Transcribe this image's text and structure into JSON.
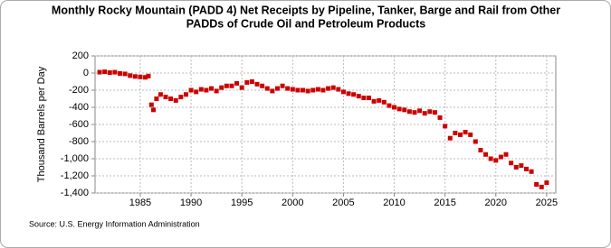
{
  "chart_data": {
    "type": "scatter",
    "title_lines": [
      "Monthly Rocky Mountain (PADD 4) Net Receipts by Pipeline, Tanker, Barge and Rail from Other",
      "PADDs of Crude Oil and Petroleum Products"
    ],
    "y_label": "Thousand Barrels per Day",
    "source": "Source: U.S. Energy Information Administration",
    "series": [
      {
        "color": "#cc0000",
        "x": [
          1981.0,
          1981.5,
          1982.0,
          1982.5,
          1983.0,
          1983.5,
          1984.0,
          1984.5,
          1985.0,
          1985.5,
          1985.8,
          1986.1,
          1986.3,
          1986.6,
          1987.0,
          1987.5,
          1988.0,
          1988.5,
          1989.0,
          1989.5,
          1990.0,
          1990.5,
          1991.0,
          1991.5,
          1992.0,
          1992.5,
          1993.0,
          1993.5,
          1994.0,
          1994.5,
          1995.0,
          1995.5,
          1996.0,
          1996.5,
          1997.0,
          1997.5,
          1998.0,
          1998.5,
          1999.0,
          1999.5,
          2000.0,
          2000.5,
          2001.0,
          2001.5,
          2002.0,
          2002.5,
          2003.0,
          2003.5,
          2004.0,
          2004.5,
          2005.0,
          2005.5,
          2006.0,
          2006.5,
          2007.0,
          2007.5,
          2008.0,
          2008.5,
          2009.0,
          2009.5,
          2010.0,
          2010.5,
          2011.0,
          2011.5,
          2012.0,
          2012.5,
          2013.0,
          2013.5,
          2014.0,
          2014.5,
          2015.0,
          2015.5,
          2016.0,
          2016.5,
          2017.0,
          2017.5,
          2018.0,
          2018.5,
          2019.0,
          2019.5,
          2020.0,
          2020.5,
          2021.0,
          2021.5,
          2022.0,
          2022.5,
          2023.0,
          2023.5,
          2024.0,
          2024.5,
          2025.0
        ],
        "values": [
          10,
          15,
          5,
          10,
          -5,
          -10,
          -30,
          -40,
          -45,
          -50,
          -35,
          -370,
          -430,
          -300,
          -250,
          -280,
          -300,
          -320,
          -280,
          -250,
          -200,
          -220,
          -190,
          -200,
          -180,
          -210,
          -170,
          -150,
          -150,
          -120,
          -170,
          -110,
          -100,
          -130,
          -150,
          -180,
          -210,
          -180,
          -150,
          -180,
          -190,
          -200,
          -200,
          -210,
          -200,
          -190,
          -200,
          -180,
          -170,
          -190,
          -220,
          -240,
          -250,
          -270,
          -290,
          -290,
          -330,
          -320,
          -340,
          -380,
          -400,
          -420,
          -430,
          -450,
          -460,
          -440,
          -470,
          -450,
          -460,
          -520,
          -620,
          -760,
          -700,
          -720,
          -690,
          -720,
          -800,
          -900,
          -950,
          -1000,
          -1020,
          -980,
          -950,
          -1050,
          -1100,
          -1080,
          -1120,
          -1150,
          -1300,
          -1330,
          -1280
        ]
      }
    ],
    "xlim": [
      1980.55,
      2025.9
    ],
    "xticks": [
      1985,
      1990,
      1995,
      2000,
      2005,
      2010,
      2015,
      2020,
      2025
    ],
    "ylim": [
      -1400,
      200
    ],
    "yticks": [
      200,
      0,
      -200,
      -400,
      -600,
      -800,
      {
        "value": -1000,
        "label": "-1,000"
      },
      {
        "value": -1200,
        "label": "-1,200"
      },
      {
        "value": -1400,
        "label": "-1,400"
      }
    ],
    "grid": true
  }
}
